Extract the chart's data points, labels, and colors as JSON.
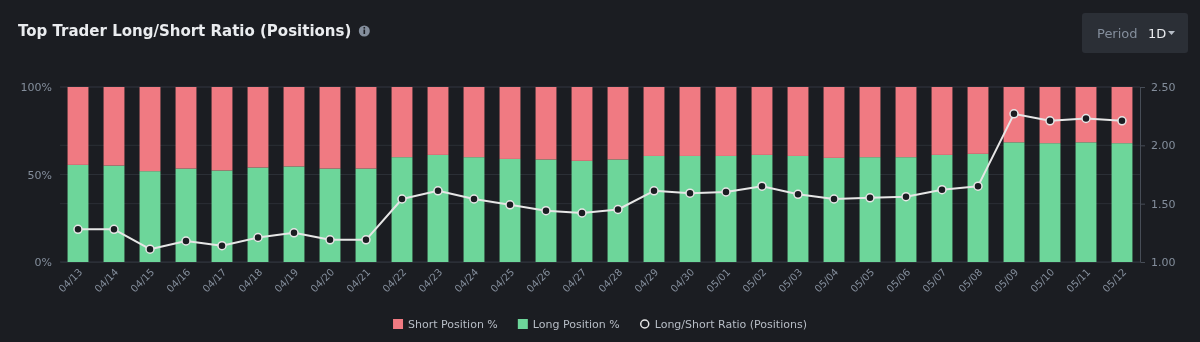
{
  "chart_data": {
    "type": "bar",
    "title": "Top Trader Long/Short Ratio (Positions)",
    "annotations": [
      "Period",
      "1D"
    ],
    "categories": [
      "04/13",
      "04/14",
      "04/15",
      "04/16",
      "04/17",
      "04/18",
      "04/19",
      "04/20",
      "04/21",
      "04/22",
      "04/23",
      "04/24",
      "04/25",
      "04/26",
      "04/27",
      "04/28",
      "04/29",
      "04/30",
      "05/01",
      "05/02",
      "05/03",
      "05/04",
      "05/05",
      "05/06",
      "05/07",
      "05/08",
      "05/09",
      "05/10",
      "05/11",
      "05/12"
    ],
    "stacked": true,
    "series": [
      {
        "name": "Long Position %",
        "color": "#6dd69a",
        "values": [
          55.5,
          55.1,
          51.9,
          53.4,
          52.3,
          54.0,
          54.6,
          53.4,
          53.4,
          59.9,
          61.2,
          59.9,
          58.9,
          58.6,
          57.8,
          58.6,
          60.6,
          60.6,
          60.6,
          61.2,
          60.6,
          59.5,
          59.9,
          59.9,
          61.2,
          61.8,
          68.4,
          67.9,
          68.4,
          67.9
        ]
      },
      {
        "name": "Short Position %",
        "color": "#f07a82",
        "values": [
          44.5,
          44.9,
          48.1,
          46.6,
          47.7,
          46.0,
          45.4,
          46.6,
          46.6,
          40.1,
          38.8,
          40.1,
          41.1,
          41.4,
          42.2,
          41.4,
          39.4,
          39.4,
          39.4,
          38.8,
          39.4,
          40.5,
          40.1,
          40.1,
          38.8,
          38.2,
          31.6,
          32.1,
          31.6,
          32.1
        ]
      },
      {
        "name": "Long/Short Ratio (Positions)",
        "type": "line",
        "axis": "y2",
        "color": "#e6e6e6",
        "values": [
          1.28,
          1.28,
          1.11,
          1.18,
          1.14,
          1.21,
          1.25,
          1.19,
          1.19,
          1.54,
          1.61,
          1.54,
          1.49,
          1.44,
          1.42,
          1.45,
          1.61,
          1.59,
          1.6,
          1.65,
          1.58,
          1.54,
          1.55,
          1.56,
          1.62,
          1.65,
          2.27,
          2.21,
          2.23,
          2.21
        ]
      }
    ],
    "ylim": [
      0,
      100
    ],
    "yticks": [
      {
        "value": 0,
        "label": "0%"
      },
      {
        "value": 50,
        "label": "50%"
      },
      {
        "value": 100,
        "label": "100%"
      }
    ],
    "y2lim": [
      1,
      2.5
    ],
    "y2ticks": [
      {
        "value": 1,
        "label": "1.00"
      },
      {
        "value": 1.5,
        "label": "1.50"
      },
      {
        "value": 2,
        "label": "2.00"
      },
      {
        "value": 2.5,
        "label": "2.50"
      }
    ],
    "grid": true,
    "legend": "bottom",
    "marker": "circle",
    "line_style": "solid"
  }
}
